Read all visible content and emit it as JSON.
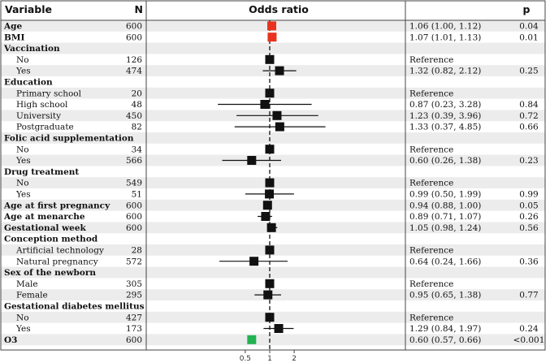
{
  "header": {
    "variable": "Variable",
    "n": "N",
    "odds_ratio": "Odds ratio",
    "p": "p"
  },
  "chart_data": {
    "type": "forest",
    "title": "Odds ratio",
    "xscale": "log",
    "xlim": [
      0.3,
      4.2
    ],
    "reference_line": 1,
    "xticks": [
      0.5,
      1,
      2
    ],
    "xtick_labels": [
      "0.5",
      "1",
      "2"
    ],
    "colors": {
      "default": "#111111",
      "highlight": "#e8321f",
      "o3": "#22b352"
    },
    "rows": [
      {
        "label": "Age",
        "level": 0,
        "n": "600",
        "or": 1.06,
        "lo": 1.0,
        "hi": 1.12,
        "ci_text": "1.06 (1.00, 1.12)",
        "p": "0.04",
        "color": "highlight"
      },
      {
        "label": "BMI",
        "level": 0,
        "n": "600",
        "or": 1.07,
        "lo": 1.01,
        "hi": 1.13,
        "ci_text": "1.07 (1.01, 1.13)",
        "p": "0.01",
        "color": "highlight"
      },
      {
        "label": "Vaccination",
        "level": 0,
        "n": "",
        "or": null,
        "ci_text": "",
        "p": ""
      },
      {
        "label": "No",
        "level": 1,
        "n": "126",
        "or": 1,
        "lo": null,
        "hi": null,
        "ci_text": "Reference",
        "p": ""
      },
      {
        "label": "Yes",
        "level": 1,
        "n": "474",
        "or": 1.32,
        "lo": 0.82,
        "hi": 2.12,
        "ci_text": "1.32 (0.82, 2.12)",
        "p": "0.25"
      },
      {
        "label": "Education",
        "level": 0,
        "n": "",
        "or": null,
        "ci_text": "",
        "p": ""
      },
      {
        "label": "Primary school",
        "level": 1,
        "n": "20",
        "or": 1,
        "lo": null,
        "hi": null,
        "ci_text": "Reference",
        "p": ""
      },
      {
        "label": "High school",
        "level": 1,
        "n": "48",
        "or": 0.87,
        "lo": 0.23,
        "hi": 3.28,
        "ci_text": "0.87 (0.23, 3.28)",
        "p": "0.84"
      },
      {
        "label": "University",
        "level": 1,
        "n": "450",
        "or": 1.23,
        "lo": 0.39,
        "hi": 3.96,
        "ci_text": "1.23 (0.39, 3.96)",
        "p": "0.72"
      },
      {
        "label": "Postgraduate",
        "level": 1,
        "n": "82",
        "or": 1.33,
        "lo": 0.37,
        "hi": 4.85,
        "ci_text": "1.33 (0.37, 4.85)",
        "p": "0.66"
      },
      {
        "label": "Folic acid supplementation",
        "level": 0,
        "n": "",
        "or": null,
        "ci_text": "",
        "p": ""
      },
      {
        "label": "No",
        "level": 1,
        "n": "34",
        "or": 1,
        "lo": null,
        "hi": null,
        "ci_text": "Reference",
        "p": ""
      },
      {
        "label": "Yes",
        "level": 1,
        "n": "566",
        "or": 0.6,
        "lo": 0.26,
        "hi": 1.38,
        "ci_text": "0.60 (0.26, 1.38)",
        "p": "0.23"
      },
      {
        "label": "Drug treatment",
        "level": 0,
        "n": "",
        "or": null,
        "ci_text": "",
        "p": ""
      },
      {
        "label": "No",
        "level": 1,
        "n": "549",
        "or": 1,
        "lo": null,
        "hi": null,
        "ci_text": "Reference",
        "p": ""
      },
      {
        "label": "Yes",
        "level": 1,
        "n": "51",
        "or": 0.99,
        "lo": 0.5,
        "hi": 1.99,
        "ci_text": "0.99 (0.50, 1.99)",
        "p": "0.99"
      },
      {
        "label": "Age at first pregnancy",
        "level": 0,
        "n": "600",
        "or": 0.94,
        "lo": 0.88,
        "hi": 1.0,
        "ci_text": "0.94 (0.88, 1.00)",
        "p": "0.05"
      },
      {
        "label": "Age at menarche",
        "level": 0,
        "n": "600",
        "or": 0.89,
        "lo": 0.71,
        "hi": 1.07,
        "ci_text": "0.89 (0.71, 1.07)",
        "p": "0.26"
      },
      {
        "label": "Gestational week",
        "level": 0,
        "n": "600",
        "or": 1.05,
        "lo": 0.98,
        "hi": 1.24,
        "ci_text": "1.05 (0.98, 1.24)",
        "p": "0.56"
      },
      {
        "label": "Conception method",
        "level": 0,
        "n": "",
        "or": null,
        "ci_text": "",
        "p": ""
      },
      {
        "label": "Artificial technology",
        "level": 1,
        "n": "28",
        "or": 1,
        "lo": null,
        "hi": null,
        "ci_text": "Reference",
        "p": ""
      },
      {
        "label": "Natural pregnancy",
        "level": 1,
        "n": "572",
        "or": 0.64,
        "lo": 0.24,
        "hi": 1.66,
        "ci_text": "0.64 (0.24, 1.66)",
        "p": "0.36"
      },
      {
        "label": "Sex of the newborn",
        "level": 0,
        "n": "",
        "or": null,
        "ci_text": "",
        "p": ""
      },
      {
        "label": "Male",
        "level": 1,
        "n": "305",
        "or": 1,
        "lo": null,
        "hi": null,
        "ci_text": "Reference",
        "p": ""
      },
      {
        "label": "Female",
        "level": 1,
        "n": "295",
        "or": 0.95,
        "lo": 0.65,
        "hi": 1.38,
        "ci_text": "0.95 (0.65, 1.38)",
        "p": "0.77"
      },
      {
        "label": "Gestational diabetes mellitus",
        "level": 0,
        "n": "",
        "or": null,
        "ci_text": "",
        "p": ""
      },
      {
        "label": "No",
        "level": 1,
        "n": "427",
        "or": 1,
        "lo": null,
        "hi": null,
        "ci_text": "Reference",
        "p": ""
      },
      {
        "label": "Yes",
        "level": 1,
        "n": "173",
        "or": 1.29,
        "lo": 0.84,
        "hi": 1.97,
        "ci_text": "1.29 (0.84, 1.97)",
        "p": "0.24"
      },
      {
        "label": "O3",
        "level": 0,
        "n": "600",
        "or": 0.6,
        "lo": 0.57,
        "hi": 0.66,
        "ci_text": "0.60 (0.57, 0.66)",
        "p": "<0.001",
        "color": "o3"
      }
    ]
  }
}
